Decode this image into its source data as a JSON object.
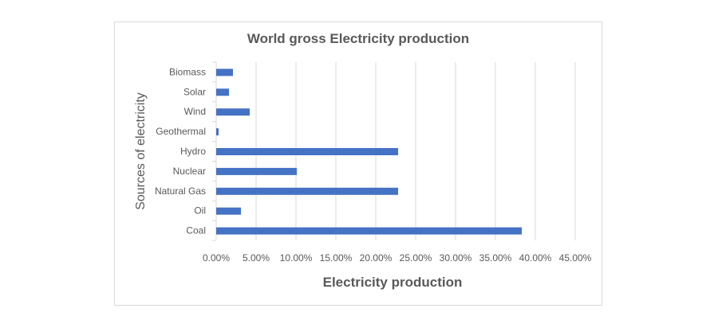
{
  "chart_data": {
    "type": "bar",
    "orientation": "horizontal",
    "title": "World gross Electricity production",
    "xlabel": "Electricity production",
    "ylabel": "Sources of electricity",
    "categories": [
      "Coal",
      "Oil",
      "Natural Gas",
      "Nuclear",
      "Hydro",
      "Geothermal",
      "Wind",
      "Solar",
      "Biomass"
    ],
    "values": [
      38.3,
      3.1,
      22.8,
      10.1,
      22.8,
      0.3,
      4.2,
      1.6,
      2.1
    ],
    "xlim": [
      0,
      45
    ],
    "xticks": [
      "0.00%",
      "5.00%",
      "10.00%",
      "15.00%",
      "20.00%",
      "25.00%",
      "30.00%",
      "35.00%",
      "40.00%",
      "45.00%"
    ],
    "grid": "vertical",
    "legend": "none",
    "bar_color": "#4472c4"
  }
}
